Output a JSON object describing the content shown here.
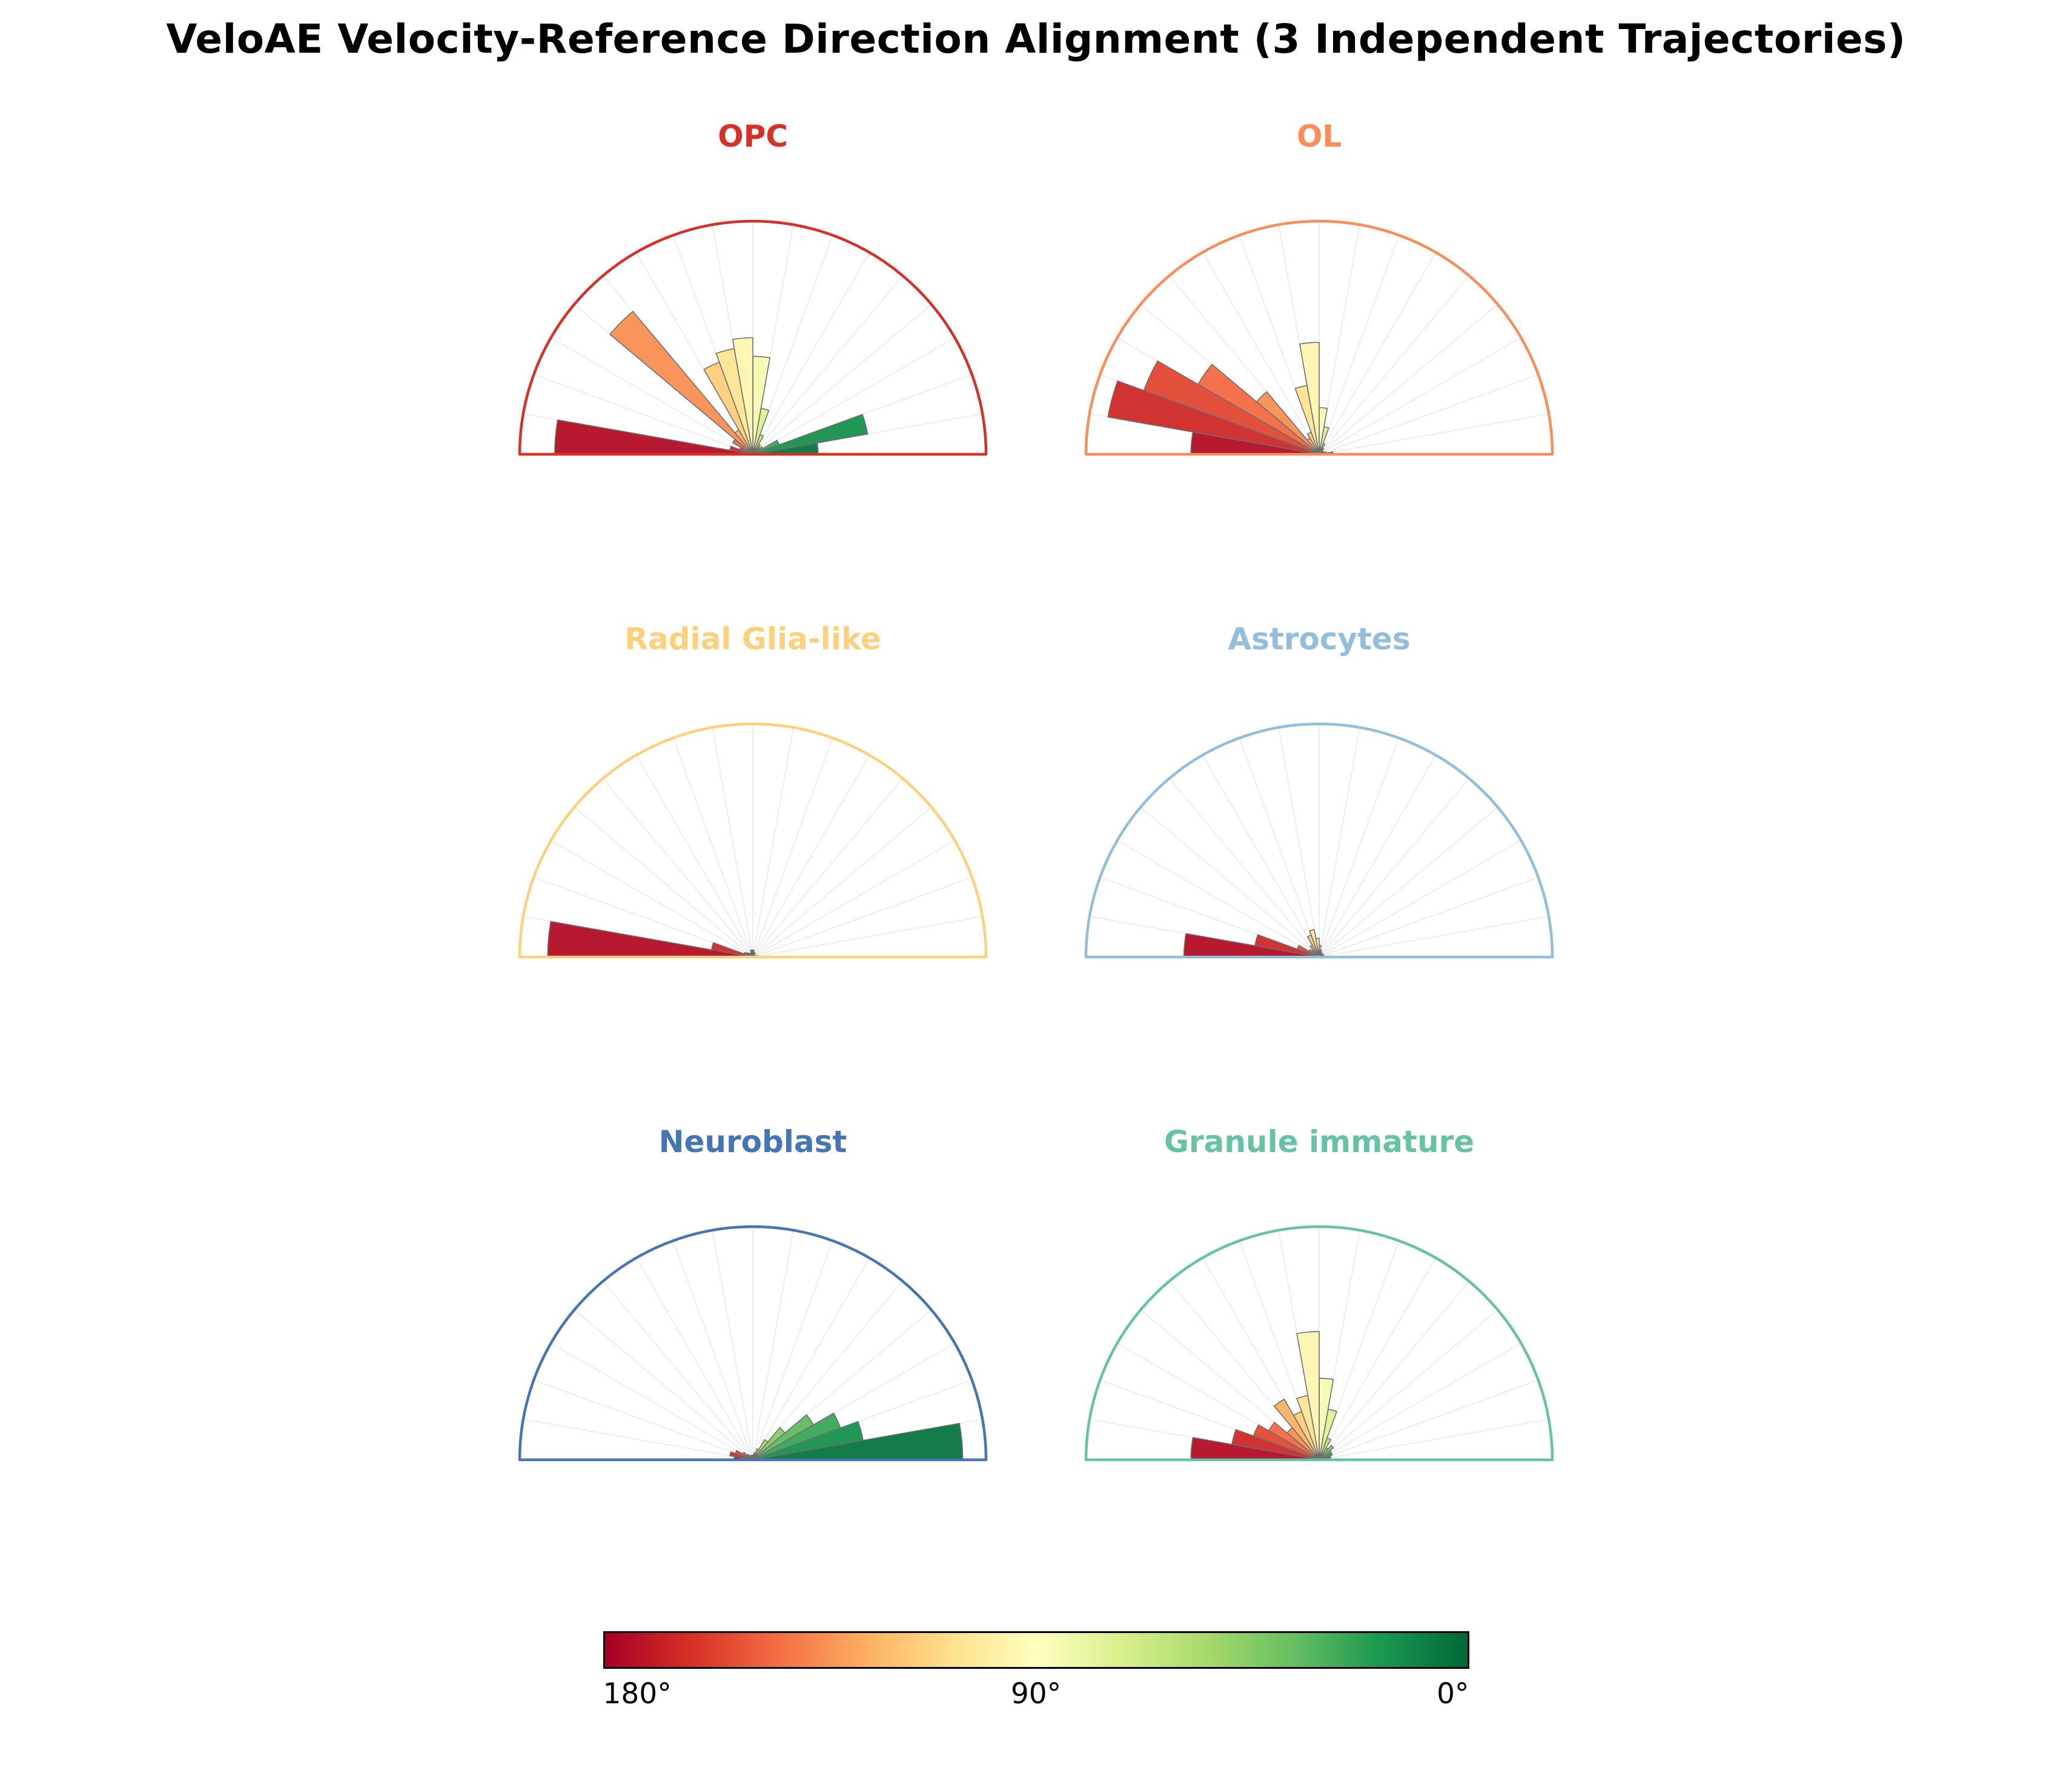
{
  "page": {
    "title": "VeloAE Velocity-Reference Direction Alignment (3 Independent Trajectories)",
    "background_color": "#ffffff"
  },
  "colorbar": {
    "labels": [
      "180°",
      "90°",
      "0°"
    ],
    "orientation": "horizontal",
    "border_color": "#000000",
    "stops_left_to_right": [
      "#a50026",
      "#d73027",
      "#f46d43",
      "#fdae61",
      "#fee08b",
      "#ffffbf",
      "#d9ef8b",
      "#a6d96a",
      "#66bd63",
      "#1a9850",
      "#006837"
    ],
    "meaning": "angle between velocity and reference direction; 180° = red (left), 90° = yellow (middle), 0° = green (right)"
  },
  "chart_data": [
    {
      "type": "polar_histogram",
      "title": "OPC",
      "accent_color": "#d73027",
      "angle_range_deg": [
        0,
        180
      ],
      "bin_width_deg": 10,
      "bin_centers_deg": [
        5,
        15,
        25,
        35,
        45,
        55,
        65,
        75,
        85,
        95,
        105,
        115,
        125,
        135,
        145,
        155,
        165,
        175
      ],
      "values_fraction_of_radius": [
        0.28,
        0.5,
        0.12,
        0.05,
        0.04,
        0.05,
        0.09,
        0.2,
        0.42,
        0.5,
        0.46,
        0.42,
        0.12,
        0.8,
        0.1,
        0.06,
        0.1,
        0.85
      ],
      "grid": "radial spokes every 10 degrees",
      "colormap": "RdYlGn mapped by angle (180deg=red, 0deg=green)"
    },
    {
      "type": "polar_histogram",
      "title": "OL",
      "accent_color": "#fc8d59",
      "angle_range_deg": [
        0,
        180
      ],
      "bin_width_deg": 10,
      "bin_centers_deg": [
        5,
        15,
        25,
        35,
        45,
        55,
        65,
        75,
        85,
        95,
        105,
        115,
        125,
        135,
        145,
        155,
        165,
        175
      ],
      "values_fraction_of_radius": [
        0.06,
        0.03,
        0.02,
        0.02,
        0.02,
        0.03,
        0.05,
        0.12,
        0.2,
        0.48,
        0.3,
        0.1,
        0.08,
        0.35,
        0.6,
        0.8,
        0.92,
        0.55
      ],
      "grid": "radial spokes every 10 degrees",
      "colormap": "RdYlGn mapped by angle (180deg=red, 0deg=green)"
    },
    {
      "type": "polar_histogram",
      "title": "Radial Glia-like",
      "accent_color": "#fdd17c",
      "angle_range_deg": [
        0,
        180
      ],
      "bin_width_deg": 10,
      "bin_centers_deg": [
        5,
        15,
        25,
        35,
        45,
        55,
        65,
        75,
        85,
        95,
        105,
        115,
        125,
        135,
        145,
        155,
        165,
        175
      ],
      "values_fraction_of_radius": [
        0.02,
        0.02,
        0.01,
        0.01,
        0.01,
        0.01,
        0.02,
        0.02,
        0.03,
        0.03,
        0.03,
        0.02,
        0.02,
        0.02,
        0.03,
        0.04,
        0.18,
        0.88
      ],
      "grid": "radial spokes every 10 degrees",
      "colormap": "RdYlGn mapped by angle (180deg=red, 0deg=green)"
    },
    {
      "type": "polar_histogram",
      "title": "Astrocytes",
      "accent_color": "#93bedb",
      "angle_range_deg": [
        0,
        180
      ],
      "bin_width_deg": 10,
      "bin_centers_deg": [
        5,
        15,
        25,
        35,
        45,
        55,
        65,
        75,
        85,
        95,
        105,
        115,
        125,
        135,
        145,
        155,
        165,
        175
      ],
      "values_fraction_of_radius": [
        0.02,
        0.02,
        0.02,
        0.02,
        0.02,
        0.02,
        0.02,
        0.03,
        0.05,
        0.08,
        0.12,
        0.1,
        0.06,
        0.04,
        0.05,
        0.1,
        0.28,
        0.58
      ],
      "grid": "radial spokes every 10 degrees",
      "colormap": "RdYlGn mapped by angle (180deg=red, 0deg=green)"
    },
    {
      "type": "polar_histogram",
      "title": "Neuroblast",
      "accent_color": "#4575b4",
      "angle_range_deg": [
        0,
        180
      ],
      "bin_width_deg": 10,
      "bin_centers_deg": [
        5,
        15,
        25,
        35,
        45,
        55,
        65,
        75,
        85,
        95,
        105,
        115,
        125,
        135,
        145,
        155,
        165,
        175
      ],
      "values_fraction_of_radius": [
        0.9,
        0.48,
        0.4,
        0.3,
        0.18,
        0.1,
        0.05,
        0.03,
        0.02,
        0.02,
        0.02,
        0.02,
        0.02,
        0.03,
        0.05,
        0.08,
        0.1,
        0.08
      ],
      "grid": "radial spokes every 10 degrees",
      "colormap": "RdYlGn mapped by angle (180deg=red, 0deg=green)"
    },
    {
      "type": "polar_histogram",
      "title": "Granule immature",
      "accent_color": "#66c2a5",
      "angle_range_deg": [
        0,
        180
      ],
      "bin_width_deg": 10,
      "bin_centers_deg": [
        5,
        15,
        25,
        35,
        45,
        55,
        65,
        75,
        85,
        95,
        105,
        115,
        125,
        135,
        145,
        155,
        165,
        175
      ],
      "values_fraction_of_radius": [
        0.04,
        0.05,
        0.06,
        0.06,
        0.08,
        0.06,
        0.1,
        0.22,
        0.35,
        0.55,
        0.28,
        0.22,
        0.3,
        0.18,
        0.25,
        0.3,
        0.38,
        0.55
      ],
      "grid": "radial spokes every 10 degrees",
      "colormap": "RdYlGn mapped by angle (180deg=red, 0deg=green)"
    }
  ]
}
